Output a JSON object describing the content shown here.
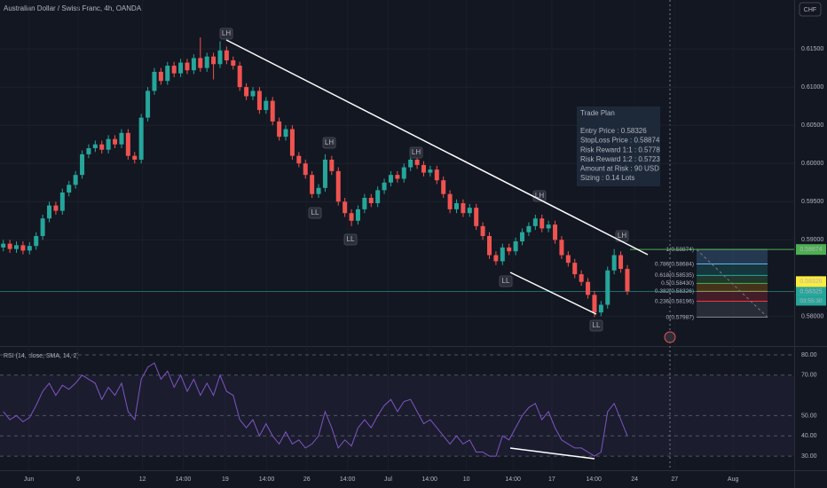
{
  "chart_data": {
    "type": "candlestick",
    "title": "Australian Dollar / Swiss Franc, 4h, OANDA",
    "currency": "CHF",
    "up_color": "#26a69a",
    "down_color": "#ef5350",
    "xlim": [
      -0.5,
      120.4
    ],
    "xticks": [
      {
        "value": 3.9,
        "label": "Jun"
      },
      {
        "value": 11.4,
        "label": "6"
      },
      {
        "value": 21.2,
        "label": "12"
      },
      {
        "value": 27.4,
        "label": "14:00"
      },
      {
        "value": 33.8,
        "label": "19"
      },
      {
        "value": 40.1,
        "label": "14:00"
      },
      {
        "value": 46.2,
        "label": "26"
      },
      {
        "value": 52.4,
        "label": "14:00"
      },
      {
        "value": 58.6,
        "label": "Jul"
      },
      {
        "value": 64.9,
        "label": "14:00"
      },
      {
        "value": 70.5,
        "label": "10"
      },
      {
        "value": 77.6,
        "label": "14:00"
      },
      {
        "value": 83.5,
        "label": "17"
      },
      {
        "value": 89.9,
        "label": "14:00"
      },
      {
        "value": 96.1,
        "label": "24"
      },
      {
        "value": 102.2,
        "label": "27"
      },
      {
        "value": 111.1,
        "label": "Aug"
      }
    ],
    "ylim": [
      0.5761,
      0.6214
    ],
    "yticks": [
      {
        "value": 0.615,
        "label": "0.61500"
      },
      {
        "value": 0.61,
        "label": "0.61000"
      },
      {
        "value": 0.605,
        "label": "0.60500"
      },
      {
        "value": 0.6,
        "label": "0.60000"
      },
      {
        "value": 0.595,
        "label": "0.59500"
      },
      {
        "value": 0.59,
        "label": "0.59000"
      },
      {
        "value": 0.58,
        "label": "0.58000"
      }
    ],
    "candles": [
      [
        0.589,
        0.59,
        0.5885,
        0.5895
      ],
      [
        0.5895,
        0.59,
        0.5883,
        0.5888
      ],
      [
        0.5888,
        0.5898,
        0.5883,
        0.5893
      ],
      [
        0.5893,
        0.5898,
        0.5881,
        0.5886
      ],
      [
        0.5886,
        0.5897,
        0.5881,
        0.5892
      ],
      [
        0.5892,
        0.591,
        0.5887,
        0.5905
      ],
      [
        0.5905,
        0.5933,
        0.59,
        0.5928
      ],
      [
        0.5928,
        0.595,
        0.5923,
        0.5945
      ],
      [
        0.5945,
        0.595,
        0.5933,
        0.5938
      ],
      [
        0.5938,
        0.5967,
        0.5933,
        0.5962
      ],
      [
        0.5962,
        0.5977,
        0.5957,
        0.5972
      ],
      [
        0.5972,
        0.599,
        0.5967,
        0.5985
      ],
      [
        0.5985,
        0.6017,
        0.598,
        0.6012
      ],
      [
        0.6012,
        0.6025,
        0.6007,
        0.602
      ],
      [
        0.602,
        0.603,
        0.6015,
        0.6025
      ],
      [
        0.6025,
        0.603,
        0.6013,
        0.6018
      ],
      [
        0.6018,
        0.6037,
        0.6013,
        0.6032
      ],
      [
        0.6032,
        0.6037,
        0.602,
        0.6025
      ],
      [
        0.6025,
        0.6045,
        0.602,
        0.604
      ],
      [
        0.604,
        0.6045,
        0.6005,
        0.601
      ],
      [
        0.601,
        0.6015,
        0.6,
        0.6005
      ],
      [
        0.6005,
        0.6065,
        0.6,
        0.606
      ],
      [
        0.606,
        0.61,
        0.6055,
        0.6095
      ],
      [
        0.6095,
        0.6125,
        0.609,
        0.612
      ],
      [
        0.612,
        0.6125,
        0.6103,
        0.6108
      ],
      [
        0.6108,
        0.6133,
        0.6103,
        0.6128
      ],
      [
        0.6128,
        0.6133,
        0.6113,
        0.6118
      ],
      [
        0.6118,
        0.6137,
        0.6113,
        0.6132
      ],
      [
        0.6132,
        0.6137,
        0.6117,
        0.6122
      ],
      [
        0.6122,
        0.6143,
        0.6117,
        0.6138
      ],
      [
        0.6138,
        0.6165,
        0.612,
        0.6125
      ],
      [
        0.6125,
        0.6145,
        0.612,
        0.614
      ],
      [
        0.614,
        0.6145,
        0.611,
        0.613
      ],
      [
        0.613,
        0.616,
        0.6125,
        0.6148
      ],
      [
        0.6148,
        0.6153,
        0.613,
        0.6135
      ],
      [
        0.6135,
        0.614,
        0.6123,
        0.6128
      ],
      [
        0.6128,
        0.6133,
        0.6095,
        0.61
      ],
      [
        0.61,
        0.6105,
        0.6083,
        0.6088
      ],
      [
        0.6088,
        0.61,
        0.6083,
        0.6095
      ],
      [
        0.6095,
        0.61,
        0.6065,
        0.607
      ],
      [
        0.607,
        0.6087,
        0.6065,
        0.6082
      ],
      [
        0.6082,
        0.6087,
        0.605,
        0.6055
      ],
      [
        0.6055,
        0.606,
        0.603,
        0.6035
      ],
      [
        0.6035,
        0.605,
        0.603,
        0.6045
      ],
      [
        0.6045,
        0.605,
        0.6005,
        0.601
      ],
      [
        0.601,
        0.6015,
        0.5995,
        0.6
      ],
      [
        0.6,
        0.6005,
        0.598,
        0.5985
      ],
      [
        0.5985,
        0.599,
        0.5955,
        0.596
      ],
      [
        0.596,
        0.5973,
        0.5955,
        0.5968
      ],
      [
        0.5968,
        0.6012,
        0.5963,
        0.6005
      ],
      [
        0.6005,
        0.601,
        0.5985,
        0.599
      ],
      [
        0.599,
        0.5995,
        0.5945,
        0.595
      ],
      [
        0.595,
        0.5955,
        0.593,
        0.5935
      ],
      [
        0.5935,
        0.594,
        0.5918,
        0.5925
      ],
      [
        0.5925,
        0.5945,
        0.592,
        0.594
      ],
      [
        0.594,
        0.596,
        0.5935,
        0.5955
      ],
      [
        0.5955,
        0.596,
        0.5943,
        0.5948
      ],
      [
        0.5948,
        0.597,
        0.5943,
        0.5965
      ],
      [
        0.5965,
        0.598,
        0.596,
        0.5975
      ],
      [
        0.5975,
        0.599,
        0.597,
        0.5985
      ],
      [
        0.5985,
        0.599,
        0.5975,
        0.598
      ],
      [
        0.598,
        0.6,
        0.5975,
        0.5995
      ],
      [
        0.5995,
        0.6012,
        0.599,
        0.6005
      ],
      [
        0.6005,
        0.601,
        0.5993,
        0.5998
      ],
      [
        0.5998,
        0.6003,
        0.5983,
        0.5988
      ],
      [
        0.5988,
        0.5997,
        0.5983,
        0.5992
      ],
      [
        0.5992,
        0.5997,
        0.5973,
        0.5978
      ],
      [
        0.5978,
        0.5983,
        0.5955,
        0.596
      ],
      [
        0.596,
        0.5965,
        0.5935,
        0.594
      ],
      [
        0.594,
        0.5953,
        0.5935,
        0.5948
      ],
      [
        0.5948,
        0.5953,
        0.593,
        0.5935
      ],
      [
        0.5935,
        0.5947,
        0.593,
        0.5942
      ],
      [
        0.5942,
        0.5947,
        0.5913,
        0.5918
      ],
      [
        0.5918,
        0.5923,
        0.59,
        0.5905
      ],
      [
        0.5905,
        0.591,
        0.5875,
        0.588
      ],
      [
        0.588,
        0.5885,
        0.5867,
        0.5872
      ],
      [
        0.5872,
        0.5895,
        0.5867,
        0.589
      ],
      [
        0.589,
        0.5895,
        0.588,
        0.5885
      ],
      [
        0.5885,
        0.5903,
        0.588,
        0.5898
      ],
      [
        0.5898,
        0.5915,
        0.5893,
        0.591
      ],
      [
        0.591,
        0.5923,
        0.5905,
        0.5918
      ],
      [
        0.5918,
        0.5933,
        0.5913,
        0.5928
      ],
      [
        0.5928,
        0.5933,
        0.591,
        0.5915
      ],
      [
        0.5915,
        0.5925,
        0.591,
        0.592
      ],
      [
        0.592,
        0.5925,
        0.5895,
        0.59
      ],
      [
        0.59,
        0.5905,
        0.5875,
        0.588
      ],
      [
        0.588,
        0.5885,
        0.5865,
        0.587
      ],
      [
        0.587,
        0.5875,
        0.585,
        0.5855
      ],
      [
        0.5855,
        0.586,
        0.584,
        0.5845
      ],
      [
        0.5845,
        0.585,
        0.5823,
        0.5828
      ],
      [
        0.5828,
        0.5833,
        0.5799,
        0.5805
      ],
      [
        0.5805,
        0.582,
        0.58,
        0.5815
      ],
      [
        0.5815,
        0.5865,
        0.581,
        0.586
      ],
      [
        0.586,
        0.5888,
        0.5855,
        0.588
      ],
      [
        0.588,
        0.5885,
        0.5857,
        0.5862
      ],
      [
        0.5862,
        0.5867,
        0.5828,
        0.58326
      ]
    ],
    "annotations": [
      "LH",
      "LH",
      "LH",
      "LH",
      "LH",
      "LL",
      "LL",
      "LL",
      "LL"
    ],
    "price_tags": [
      {
        "value": 0.58874,
        "label": "0.58874",
        "color": "#4caf50"
      },
      {
        "value": 0.58325,
        "label": "0.58325",
        "color": "#26a69a"
      },
      {
        "value": 0.58326,
        "label": "0.58326",
        "color": "#ffeb3b"
      }
    ],
    "countdown": "03:55:30",
    "fib": [
      {
        "price": 0.58874,
        "label": "1(0.58874)",
        "color": "#787b86"
      },
      {
        "price": 0.58684,
        "label": "0.786(0.58684)",
        "color": "#64b5f6"
      },
      {
        "price": 0.58535,
        "label": "0.618(0.58535)",
        "color": "#26a69a"
      },
      {
        "price": 0.5843,
        "label": "0.5(0.58430)",
        "color": "#4caf50"
      },
      {
        "price": 0.58326,
        "label": "0.382(0.58326)",
        "color": "#ff9800"
      },
      {
        "price": 0.58196,
        "label": "0.236(0.58196)",
        "color": "#f23645"
      },
      {
        "price": 0.57987,
        "label": "0(0.57987)",
        "color": "#787b86"
      }
    ],
    "trade_plan": {
      "title": "Trade Plan",
      "lines": [
        "Entry Price : 0.58326",
        "StopLoss Price : 0.58874",
        "Risk Reward 1:1 : 0.5778",
        "Risk Reward 1:2 : 0.5723",
        "Amount at Risk : 90 USD",
        "Sizing : 0.14 Lots"
      ]
    },
    "rsi": {
      "title": "RSI (14, close, SMA, 14, 2)",
      "color": "#7e57c2",
      "ylim": [
        27.4,
        83.5
      ],
      "yticks": [
        {
          "value": 80,
          "label": "80.00"
        },
        {
          "value": 70,
          "label": "70.00"
        },
        {
          "value": 50,
          "label": "50.00"
        },
        {
          "value": 40,
          "label": "40.00"
        },
        {
          "value": 30,
          "label": "30.00"
        }
      ],
      "values": [
        52,
        48,
        50,
        47,
        49,
        55,
        62,
        66,
        60,
        65,
        63,
        66,
        70,
        68,
        66,
        58,
        64,
        60,
        66,
        52,
        48,
        68,
        74,
        76,
        68,
        72,
        64,
        70,
        62,
        68,
        60,
        66,
        60,
        70,
        62,
        60,
        48,
        44,
        48,
        40,
        46,
        40,
        36,
        42,
        36,
        38,
        34,
        36,
        40,
        52,
        44,
        34,
        38,
        35,
        44,
        48,
        44,
        50,
        55,
        58,
        52,
        57,
        58,
        52,
        46,
        48,
        44,
        40,
        36,
        40,
        36,
        38,
        32,
        32,
        30,
        30,
        40,
        38,
        44,
        50,
        54,
        56,
        48,
        52,
        44,
        38,
        36,
        34,
        34,
        32,
        30,
        32,
        52,
        56,
        48,
        40
      ]
    }
  }
}
